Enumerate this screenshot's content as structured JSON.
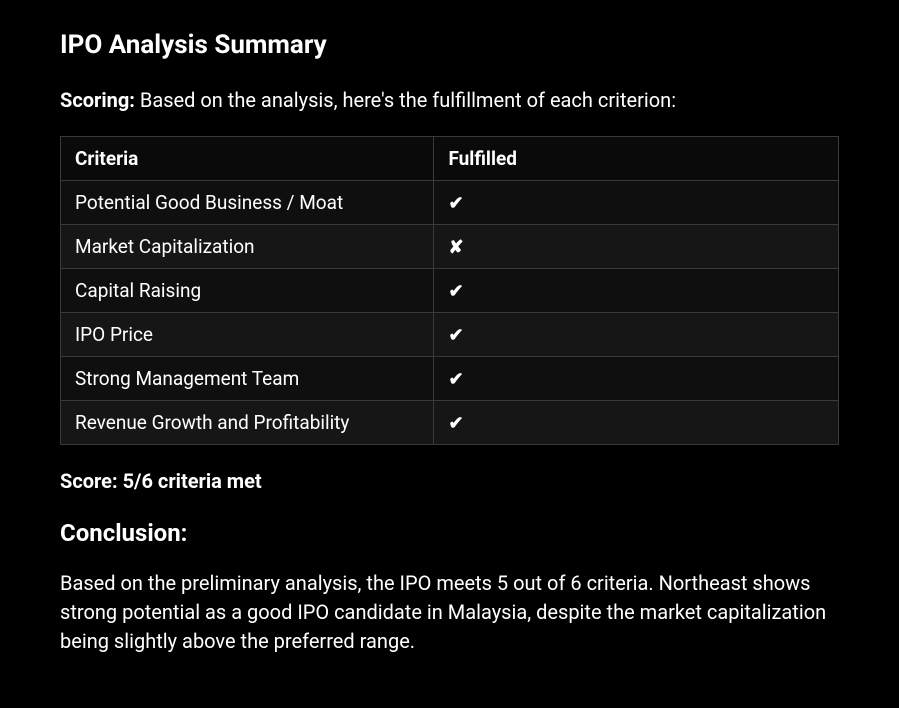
{
  "title": "IPO Analysis Summary",
  "scoring": {
    "label": "Scoring:",
    "text": "Based on the analysis, here's the fulfillment of each criterion:"
  },
  "table": {
    "headers": {
      "criteria": "Criteria",
      "fulfilled": "Fulfilled"
    },
    "rows": [
      {
        "criteria": "Potential Good Business / Moat",
        "fulfilled": "✔"
      },
      {
        "criteria": "Market Capitalization",
        "fulfilled": "✘"
      },
      {
        "criteria": "Capital Raising",
        "fulfilled": "✔"
      },
      {
        "criteria": "IPO Price",
        "fulfilled": "✔"
      },
      {
        "criteria": "Strong Management Team",
        "fulfilled": "✔"
      },
      {
        "criteria": "Revenue Growth and Profitability",
        "fulfilled": "✔"
      }
    ]
  },
  "score_line": "Score: 5/6 criteria met",
  "conclusion": {
    "heading": "Conclusion:",
    "text": "Based on the preliminary analysis, the IPO meets 5 out of 6 criteria. Northeast shows strong potential as a good IPO candidate in Malaysia, despite the market capitalization being slightly above the preferred range."
  },
  "colors": {
    "background": "#000000",
    "text": "#ffffff",
    "border": "#3a3a3a",
    "row_odd": "#0f0f0f",
    "row_even": "#161616"
  }
}
